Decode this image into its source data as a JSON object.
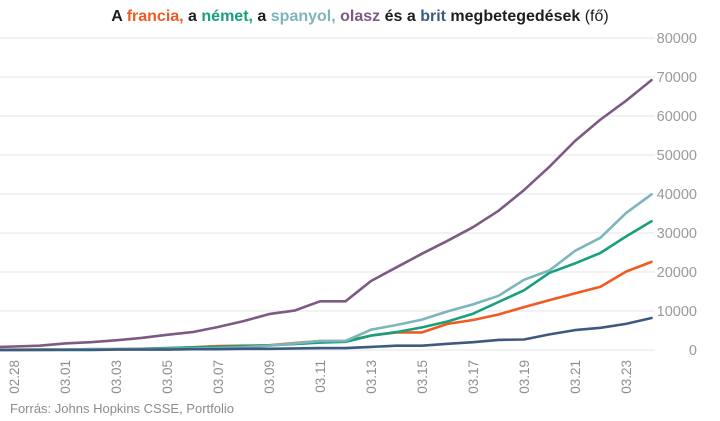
{
  "chart_data": {
    "type": "line",
    "title": {
      "parts": [
        {
          "text": "A "
        },
        {
          "series": 0,
          "suffix": ","
        },
        {
          "text": " a "
        },
        {
          "series": 1,
          "suffix": ","
        },
        {
          "text": " a "
        },
        {
          "series": 2,
          "suffix": ","
        },
        {
          "text": " "
        },
        {
          "series": 3
        },
        {
          "text": " és a "
        },
        {
          "series": 4
        },
        {
          "text": " megbetegedések "
        }
      ],
      "unit": "(fő)"
    },
    "x": [
      "02.27",
      "02.28",
      "02.29",
      "03.01",
      "03.02",
      "03.03",
      "03.04",
      "03.05",
      "03.06",
      "03.07",
      "03.08",
      "03.09",
      "03.10",
      "03.11",
      "03.12",
      "03.13",
      "03.14",
      "03.15",
      "03.16",
      "03.17",
      "03.18",
      "03.19",
      "03.20",
      "03.21",
      "03.22",
      "03.23",
      "03.24"
    ],
    "x_ticks": [
      "02.28",
      "03.01",
      "03.03",
      "03.05",
      "03.07",
      "03.09",
      "03.11",
      "03.13",
      "03.15",
      "03.17",
      "03.19",
      "03.21",
      "03.23"
    ],
    "ylim": [
      0,
      80000
    ],
    "y_ticks": [
      0,
      10000,
      20000,
      30000,
      40000,
      50000,
      60000,
      70000,
      80000
    ],
    "y_axis_side": "right",
    "grid": "horizontal",
    "series": [
      {
        "name": "francia",
        "color": "#f15a22",
        "values": [
          0,
          100,
          100,
          100,
          200,
          200,
          300,
          400,
          700,
          1000,
          1100,
          1200,
          1800,
          2300,
          2300,
          3700,
          4500,
          4500,
          6700,
          7700,
          9100,
          11000,
          12800,
          14500,
          16200,
          20100,
          22600
        ]
      },
      {
        "name": "német",
        "color": "#16a07c",
        "values": [
          0,
          0,
          100,
          100,
          200,
          200,
          300,
          500,
          700,
          800,
          1000,
          1200,
          1500,
          1900,
          2100,
          3700,
          4600,
          5800,
          7300,
          9300,
          12300,
          15300,
          19800,
          22200,
          24900,
          29100,
          33000
        ]
      },
      {
        "name": "spanyol",
        "color": "#7cb5ba",
        "values": [
          0,
          0,
          0,
          100,
          100,
          200,
          200,
          300,
          400,
          500,
          700,
          1100,
          1700,
          2300,
          2300,
          5200,
          6400,
          7800,
          9900,
          11700,
          13900,
          18000,
          20400,
          25400,
          28800,
          35100,
          39900
        ]
      },
      {
        "name": "olasz",
        "color": "#7c5a83",
        "values": [
          700,
          900,
          1100,
          1700,
          2000,
          2500,
          3100,
          3900,
          4600,
          5900,
          7400,
          9200,
          10100,
          12500,
          12500,
          17700,
          21200,
          24700,
          28000,
          31500,
          35700,
          41000,
          47000,
          53600,
          59100,
          63900,
          69200
        ]
      },
      {
        "name": "brit",
        "color": "#3d5a80",
        "values": [
          0,
          0,
          0,
          0,
          0,
          100,
          100,
          100,
          200,
          200,
          300,
          300,
          400,
          500,
          500,
          800,
          1100,
          1100,
          1600,
          2000,
          2600,
          2700,
          4000,
          5100,
          5700,
          6700,
          8200
        ]
      }
    ],
    "source": "Forrás: Johns Hopkins CSSE, Portfolio"
  }
}
